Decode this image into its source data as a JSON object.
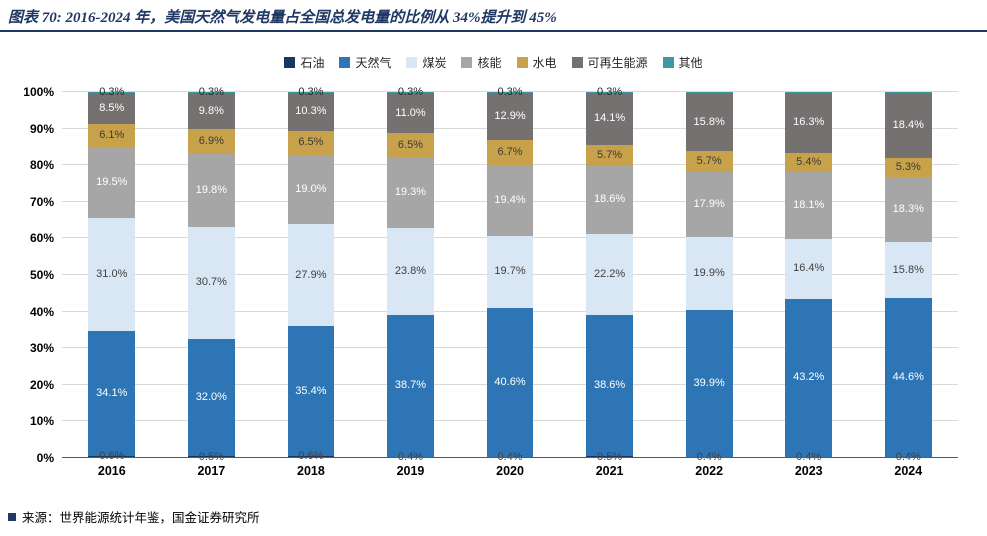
{
  "header": {
    "title": "图表 70: 2016-2024 年，美国天然气发电量占全国总发电量的比例从 34%提升到 45%"
  },
  "footer": {
    "source": "来源：世界能源统计年鉴，国金证券研究所"
  },
  "colors": {
    "accent_navy": "#1F3864",
    "gridline": "#D9D9D9",
    "axis": "#595959"
  },
  "chart_data": {
    "type": "bar",
    "variant": "stacked-100-percent",
    "title": "图表 70: 2016-2024 年，美国天然气发电量占全国总发电量的比例从 34%提升到 45%",
    "xlabel": "",
    "ylabel": "",
    "ylim": [
      0,
      100
    ],
    "grid": "horizontal",
    "legend_position": "top-center",
    "yticks": [
      "0%",
      "10%",
      "20%",
      "30%",
      "40%",
      "50%",
      "60%",
      "70%",
      "80%",
      "90%",
      "100%"
    ],
    "categories": [
      "2016",
      "2017",
      "2018",
      "2019",
      "2020",
      "2021",
      "2022",
      "2023",
      "2024"
    ],
    "series": [
      {
        "key": "oil",
        "name": "石油",
        "color": "#17375E",
        "label_color": "#404040",
        "values": [
          0.6,
          0.5,
          0.6,
          0.4,
          0.4,
          0.5,
          0.4,
          0.4,
          0.4
        ],
        "labels": [
          "0.6%",
          "0.5%",
          "0.6%",
          "0.4%",
          "0.4%",
          "0.5%",
          "0.4%",
          "0.4%",
          "0.4%"
        ]
      },
      {
        "key": "natural-gas",
        "name": "天然气",
        "color": "#2E75B6",
        "label_color": "#FFFFFF",
        "values": [
          34.1,
          32.0,
          35.4,
          38.7,
          40.6,
          38.6,
          39.9,
          43.2,
          44.6
        ],
        "labels": [
          "34.1%",
          "32.0%",
          "35.4%",
          "38.7%",
          "40.6%",
          "38.6%",
          "39.9%",
          "43.2%",
          "44.6%"
        ]
      },
      {
        "key": "coal",
        "name": "煤炭",
        "color": "#D9E6F4",
        "label_color": "#404040",
        "values": [
          31.0,
          30.7,
          27.9,
          23.8,
          19.7,
          22.2,
          19.9,
          16.4,
          15.8
        ],
        "labels": [
          "31.0%",
          "30.7%",
          "27.9%",
          "23.8%",
          "19.7%",
          "22.2%",
          "19.9%",
          "16.4%",
          "15.8%"
        ]
      },
      {
        "key": "nuclear",
        "name": "核能",
        "color": "#A6A6A6",
        "label_color": "#FFFFFF",
        "values": [
          19.5,
          19.8,
          19.0,
          19.3,
          19.4,
          18.6,
          17.9,
          18.1,
          18.3
        ],
        "labels": [
          "19.5%",
          "19.8%",
          "19.0%",
          "19.3%",
          "19.4%",
          "18.6%",
          "17.9%",
          "18.1%",
          "18.3%"
        ]
      },
      {
        "key": "hydro",
        "name": "水电",
        "color": "#C7A24A",
        "label_color": "#3A3A3A",
        "values": [
          6.1,
          6.9,
          6.5,
          6.5,
          6.7,
          5.7,
          5.7,
          5.4,
          5.3
        ],
        "labels": [
          "6.1%",
          "6.9%",
          "6.5%",
          "6.5%",
          "6.7%",
          "5.7%",
          "5.7%",
          "5.4%",
          "5.3%"
        ]
      },
      {
        "key": "renewables",
        "name": "可再生能源",
        "color": "#767171",
        "label_color": "#FFFFFF",
        "values": [
          8.5,
          9.8,
          10.3,
          11.0,
          12.9,
          14.1,
          15.8,
          16.3,
          18.4
        ],
        "labels": [
          "8.5%",
          "9.8%",
          "10.3%",
          "11.0%",
          "12.9%",
          "14.1%",
          "15.8%",
          "16.3%",
          "18.4%"
        ]
      },
      {
        "key": "other",
        "name": "其他",
        "color": "#3B9BA3",
        "label_color": "#262626",
        "values": [
          0.3,
          0.3,
          0.3,
          0.3,
          0.3,
          0.3,
          0.3,
          0.3,
          0.3
        ],
        "labels": [
          "0.3%",
          "0.3%",
          "0.3%",
          "0.3%",
          "0.3%",
          "0.3%",
          "",
          "",
          ""
        ]
      }
    ]
  }
}
